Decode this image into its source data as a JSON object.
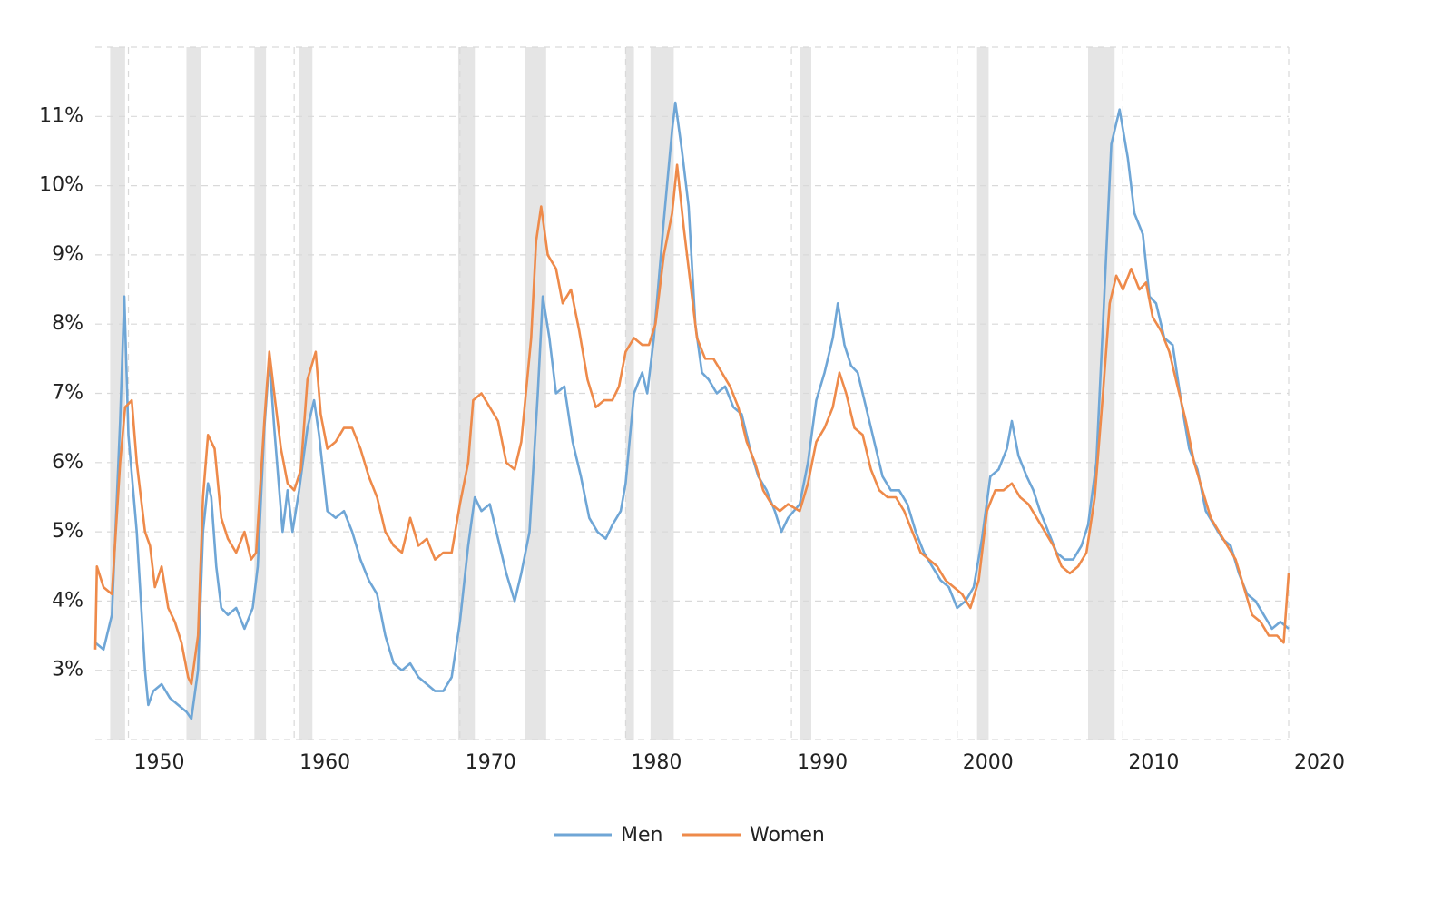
{
  "chart_data": {
    "type": "line",
    "xlim": [
      1948,
      2020
    ],
    "xticks": [
      1950,
      1960,
      1970,
      1980,
      1990,
      2000,
      2010,
      2020
    ],
    "ylim": [
      2,
      12
    ],
    "yticks": [
      {
        "value": 3,
        "label": "3%"
      },
      {
        "value": 4,
        "label": "4%"
      },
      {
        "value": 5,
        "label": "5%"
      },
      {
        "value": 6,
        "label": "6%"
      },
      {
        "value": 7,
        "label": "7%"
      },
      {
        "value": 8,
        "label": "8%"
      },
      {
        "value": 9,
        "label": "9%"
      },
      {
        "value": 10,
        "label": "10%"
      },
      {
        "value": 11,
        "label": "11%"
      },
      12
    ],
    "grid": true,
    "legend": "bottom",
    "recessions": [
      [
        1948.9,
        1949.8
      ],
      [
        1953.5,
        1954.4
      ],
      [
        1957.6,
        1958.3
      ],
      [
        1960.3,
        1961.1
      ],
      [
        1969.9,
        1970.9
      ],
      [
        1973.9,
        1975.2
      ],
      [
        1980.0,
        1980.5
      ],
      [
        1981.5,
        1982.9
      ],
      [
        1990.5,
        1991.2
      ],
      [
        2001.2,
        2001.9
      ],
      [
        2007.9,
        2009.5
      ]
    ],
    "recession_color": "#e5e5e5",
    "series": [
      {
        "name": "Men",
        "color": "#6fa6d6",
        "x": [
          1948.0,
          1948.5,
          1949.0,
          1949.5,
          1949.75,
          1950.0,
          1950.5,
          1951.0,
          1951.2,
          1951.5,
          1952.0,
          1952.5,
          1953.0,
          1953.5,
          1953.8,
          1954.2,
          1954.5,
          1954.8,
          1955.0,
          1955.3,
          1955.6,
          1956.0,
          1956.5,
          1957.0,
          1957.5,
          1957.8,
          1958.2,
          1958.5,
          1958.8,
          1959.3,
          1959.6,
          1959.9,
          1960.3,
          1960.8,
          1961.2,
          1961.5,
          1962.0,
          1962.5,
          1963.0,
          1963.5,
          1964.0,
          1964.5,
          1965.0,
          1965.5,
          1966.0,
          1966.5,
          1967.0,
          1967.5,
          1968.0,
          1968.5,
          1969.0,
          1969.5,
          1970.0,
          1970.5,
          1970.9,
          1971.3,
          1971.8,
          1972.3,
          1972.8,
          1973.3,
          1973.7,
          1974.2,
          1974.7,
          1975.0,
          1975.4,
          1975.8,
          1976.3,
          1976.8,
          1977.3,
          1977.8,
          1978.3,
          1978.8,
          1979.2,
          1979.7,
          1980.0,
          1980.5,
          1981.0,
          1981.3,
          1981.7,
          1982.3,
          1982.8,
          1983.0,
          1983.4,
          1983.8,
          1984.2,
          1984.6,
          1985.0,
          1985.5,
          1986.0,
          1986.5,
          1987.0,
          1987.5,
          1988.0,
          1988.5,
          1989.0,
          1989.4,
          1989.8,
          1990.5,
          1991.0,
          1991.5,
          1992.0,
          1992.5,
          1992.8,
          1993.2,
          1993.6,
          1994.0,
          1994.5,
          1995.0,
          1995.5,
          1996.0,
          1996.5,
          1997.0,
          1997.5,
          1998.0,
          1998.5,
          1999.0,
          1999.5,
          2000.0,
          2000.5,
          2001.0,
          2001.5,
          2002.0,
          2002.5,
          2003.0,
          2003.3,
          2003.7,
          2004.2,
          2004.6,
          2005.0,
          2005.5,
          2006.0,
          2006.5,
          2007.0,
          2007.5,
          2007.9,
          2008.4,
          2008.8,
          2009.3,
          2009.8,
          2010.3,
          2010.7,
          2011.2,
          2011.6,
          2012.0,
          2012.5,
          2013.0,
          2013.5,
          2014.0,
          2014.5,
          2015.0,
          2015.5,
          2016.0,
          2016.5,
          2017.0,
          2017.5,
          2018.0,
          2018.5,
          2019.0,
          2019.5,
          2020.0
        ],
        "values": [
          3.4,
          3.3,
          3.8,
          6.6,
          8.4,
          6.4,
          5.0,
          3.0,
          2.5,
          2.7,
          2.8,
          2.6,
          2.5,
          2.4,
          2.3,
          3.0,
          5.0,
          5.7,
          5.5,
          4.5,
          3.9,
          3.8,
          3.9,
          3.6,
          3.9,
          4.5,
          6.5,
          7.5,
          6.5,
          5.0,
          5.6,
          5.0,
          5.6,
          6.5,
          6.9,
          6.4,
          5.3,
          5.2,
          5.3,
          5.0,
          4.6,
          4.3,
          4.1,
          3.5,
          3.1,
          3.0,
          3.1,
          2.9,
          2.8,
          2.7,
          2.7,
          2.9,
          3.7,
          4.8,
          5.5,
          5.3,
          5.4,
          4.9,
          4.4,
          4.0,
          4.4,
          5.0,
          7.0,
          8.4,
          7.8,
          7.0,
          7.1,
          6.3,
          5.8,
          5.2,
          5.0,
          4.9,
          5.1,
          5.3,
          5.7,
          7.0,
          7.3,
          7.0,
          7.8,
          9.5,
          10.8,
          11.2,
          10.5,
          9.7,
          8.0,
          7.3,
          7.2,
          7.0,
          7.1,
          6.8,
          6.7,
          6.2,
          5.8,
          5.6,
          5.3,
          5.0,
          5.2,
          5.4,
          6.0,
          6.9,
          7.3,
          7.8,
          8.3,
          7.7,
          7.4,
          7.3,
          6.8,
          6.3,
          5.8,
          5.6,
          5.6,
          5.4,
          5.0,
          4.7,
          4.5,
          4.3,
          4.2,
          3.9,
          4.0,
          4.2,
          4.9,
          5.8,
          5.9,
          6.2,
          6.6,
          6.1,
          5.8,
          5.6,
          5.3,
          5.0,
          4.7,
          4.6,
          4.6,
          4.8,
          5.1,
          6.0,
          8.0,
          10.6,
          11.1,
          10.4,
          9.6,
          9.3,
          8.4,
          8.3,
          7.8,
          7.7,
          6.9,
          6.2,
          5.9,
          5.3,
          5.1,
          4.9,
          4.8,
          4.4,
          4.1,
          4.0,
          3.8,
          3.6,
          3.7,
          3.6
        ]
      },
      {
        "name": "Women",
        "color": "#ee8a4a",
        "x": [
          1948.0,
          1948.1,
          1948.5,
          1949.0,
          1949.5,
          1949.8,
          1950.2,
          1950.5,
          1951.0,
          1951.3,
          1951.6,
          1952.0,
          1952.4,
          1952.8,
          1953.2,
          1953.6,
          1953.8,
          1954.2,
          1954.5,
          1954.8,
          1955.2,
          1955.6,
          1956.0,
          1956.5,
          1957.0,
          1957.4,
          1957.7,
          1958.2,
          1958.5,
          1958.8,
          1959.2,
          1959.6,
          1960.0,
          1960.4,
          1960.8,
          1961.3,
          1961.6,
          1962.0,
          1962.5,
          1963.0,
          1963.5,
          1964.0,
          1964.5,
          1965.0,
          1965.5,
          1966.0,
          1966.5,
          1967.0,
          1967.5,
          1968.0,
          1968.5,
          1969.0,
          1969.5,
          1970.0,
          1970.5,
          1970.8,
          1971.3,
          1971.8,
          1972.3,
          1972.8,
          1973.3,
          1973.7,
          1974.3,
          1974.6,
          1974.9,
          1975.3,
          1975.8,
          1976.2,
          1976.7,
          1977.2,
          1977.7,
          1978.2,
          1978.7,
          1979.2,
          1979.6,
          1980.0,
          1980.5,
          1981.0,
          1981.4,
          1981.8,
          1982.3,
          1982.8,
          1983.1,
          1983.5,
          1983.9,
          1984.3,
          1984.8,
          1985.3,
          1985.8,
          1986.3,
          1986.8,
          1987.3,
          1987.8,
          1988.3,
          1988.8,
          1989.3,
          1989.8,
          1990.5,
          1991.0,
          1991.5,
          1992.0,
          1992.5,
          1992.9,
          1993.3,
          1993.8,
          1994.3,
          1994.8,
          1995.3,
          1995.8,
          1996.3,
          1996.8,
          1997.3,
          1997.8,
          1998.3,
          1998.8,
          1999.3,
          1999.8,
          2000.3,
          2000.8,
          2001.3,
          2001.8,
          2002.3,
          2002.8,
          2003.3,
          2003.8,
          2004.3,
          2004.8,
          2005.3,
          2005.8,
          2006.3,
          2006.8,
          2007.3,
          2007.8,
          2008.3,
          2008.8,
          2009.2,
          2009.6,
          2010.0,
          2010.5,
          2011.0,
          2011.4,
          2011.8,
          2012.3,
          2012.8,
          2013.3,
          2013.8,
          2014.3,
          2014.8,
          2015.3,
          2015.8,
          2016.3,
          2016.8,
          2017.3,
          2017.8,
          2018.3,
          2018.8,
          2019.3,
          2019.7,
          2020.0
        ],
        "values": [
          3.3,
          4.5,
          4.2,
          4.1,
          6.0,
          6.8,
          6.9,
          6.0,
          5.0,
          4.8,
          4.2,
          4.5,
          3.9,
          3.7,
          3.4,
          2.9,
          2.8,
          3.5,
          5.5,
          6.4,
          6.2,
          5.2,
          4.9,
          4.7,
          5.0,
          4.6,
          4.7,
          6.6,
          7.6,
          7.0,
          6.2,
          5.7,
          5.6,
          5.9,
          7.2,
          7.6,
          6.7,
          6.2,
          6.3,
          6.5,
          6.5,
          6.2,
          5.8,
          5.5,
          5.0,
          4.8,
          4.7,
          5.2,
          4.8,
          4.9,
          4.6,
          4.7,
          4.7,
          5.4,
          6.0,
          6.9,
          7.0,
          6.8,
          6.6,
          6.0,
          5.9,
          6.3,
          7.8,
          9.2,
          9.7,
          9.0,
          8.8,
          8.3,
          8.5,
          7.9,
          7.2,
          6.8,
          6.9,
          6.9,
          7.1,
          7.6,
          7.8,
          7.7,
          7.7,
          8.0,
          9.0,
          9.6,
          10.3,
          9.4,
          8.6,
          7.8,
          7.5,
          7.5,
          7.3,
          7.1,
          6.8,
          6.3,
          6.0,
          5.6,
          5.4,
          5.3,
          5.4,
          5.3,
          5.7,
          6.3,
          6.5,
          6.8,
          7.3,
          7.0,
          6.5,
          6.4,
          5.9,
          5.6,
          5.5,
          5.5,
          5.3,
          5.0,
          4.7,
          4.6,
          4.5,
          4.3,
          4.2,
          4.1,
          3.9,
          4.3,
          5.3,
          5.6,
          5.6,
          5.7,
          5.5,
          5.4,
          5.2,
          5.0,
          4.8,
          4.5,
          4.4,
          4.5,
          4.7,
          5.5,
          7.0,
          8.3,
          8.7,
          8.5,
          8.8,
          8.5,
          8.6,
          8.1,
          7.9,
          7.6,
          7.1,
          6.6,
          6.0,
          5.6,
          5.2,
          5.0,
          4.8,
          4.6,
          4.2,
          3.8,
          3.7,
          3.5,
          3.5,
          3.4,
          4.4
        ]
      }
    ]
  }
}
